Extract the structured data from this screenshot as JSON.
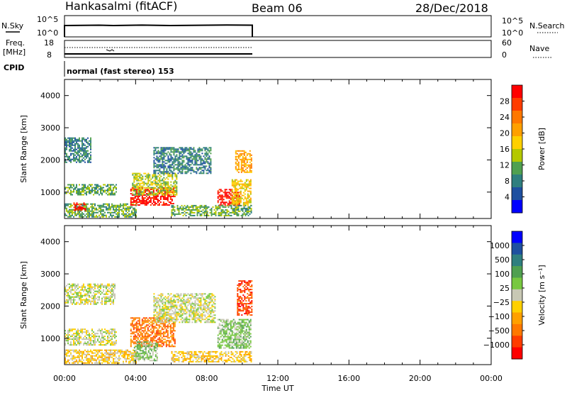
{
  "header": {
    "station": "Hankasalmi (fitACF)",
    "beam": "Beam 06",
    "date": "28/Dec/2018"
  },
  "nsky_panel": {
    "label": "N.Sky",
    "left_ticks": [
      "10^5",
      "10^0"
    ],
    "right_ticks": [
      "10^5",
      "10^0"
    ],
    "right_label": "N.Search"
  },
  "freq_panel": {
    "label_line1": "Freq.",
    "label_line2": "[MHz]",
    "left_ticks": [
      "18",
      "8"
    ],
    "right_ticks": [
      "60",
      "0"
    ],
    "right_label": "Nave"
  },
  "cpid_panel": {
    "label": "CPID",
    "text": "normal (fast stereo) 153"
  },
  "chart_data": [
    {
      "type": "heatmap",
      "name": "power",
      "ylabel": "Slant Range [km]",
      "y_ticks": [
        1000,
        2000,
        3000,
        4000
      ],
      "ylim": [
        180,
        4500
      ],
      "xlim": [
        0,
        24
      ],
      "colorbar": {
        "label": "Power [dB]",
        "ticks": [
          "28",
          "24",
          "20",
          "16",
          "12",
          "8",
          "4"
        ],
        "colors": [
          "#ff0000",
          "#ff3c00",
          "#ff7800",
          "#ffa000",
          "#ffd000",
          "#b4c800",
          "#50a050",
          "#2f7f7f",
          "#1e50a0",
          "#0000ff"
        ]
      },
      "regions": [
        {
          "t0": 0.0,
          "t1": 1.5,
          "r0": 1950,
          "r1": 2700,
          "level": 7
        },
        {
          "t0": 0.0,
          "t1": 2.9,
          "r0": 900,
          "r1": 1250,
          "level": 6
        },
        {
          "t0": 0.0,
          "t1": 4.0,
          "r0": 250,
          "r1": 650,
          "level": 6
        },
        {
          "t0": 0.5,
          "t1": 1.2,
          "r0": 450,
          "r1": 680,
          "level": 0
        },
        {
          "t0": 3.7,
          "t1": 6.2,
          "r0": 600,
          "r1": 1150,
          "level": 0
        },
        {
          "t0": 3.8,
          "t1": 6.3,
          "r0": 900,
          "r1": 1600,
          "level": 5
        },
        {
          "t0": 5.0,
          "t1": 8.2,
          "r0": 1600,
          "r1": 2400,
          "level": 7
        },
        {
          "t0": 8.6,
          "t1": 9.8,
          "r0": 600,
          "r1": 1100,
          "level": 0
        },
        {
          "t0": 9.4,
          "t1": 10.5,
          "r0": 600,
          "r1": 1400,
          "level": 4
        },
        {
          "t0": 9.6,
          "t1": 10.5,
          "r0": 1600,
          "r1": 2300,
          "level": 3
        },
        {
          "t0": 6.0,
          "t1": 10.5,
          "r0": 250,
          "r1": 600,
          "level": 6
        }
      ]
    },
    {
      "type": "heatmap",
      "name": "velocity",
      "ylabel": "Slant Range [km]",
      "y_ticks": [
        1000,
        2000,
        3000,
        4000
      ],
      "ylim": [
        180,
        4500
      ],
      "xlim": [
        0,
        24
      ],
      "x_ticks": [
        "00:00",
        "04:00",
        "08:00",
        "12:00",
        "16:00",
        "20:00",
        "00:00"
      ],
      "xlabel": "Time UT",
      "colorbar": {
        "label": "Velocity [m s⁻¹]",
        "ticks": [
          "1000",
          "500",
          "100",
          "25",
          "−25",
          "−100",
          "−500",
          "−1000"
        ],
        "colors": [
          "#0000ff",
          "#1e50a0",
          "#2f7f7f",
          "#50a050",
          "#78c840",
          "#c8c8b4",
          "#ffd000",
          "#ffa000",
          "#ff7800",
          "#ff3c00",
          "#ff0000"
        ]
      },
      "regions": [
        {
          "t0": 0.0,
          "t1": 2.8,
          "r0": 2050,
          "r1": 2700,
          "level": 5
        },
        {
          "t0": 0.0,
          "t1": 2.9,
          "r0": 800,
          "r1": 1300,
          "level": 5
        },
        {
          "t0": 0.0,
          "t1": 4.0,
          "r0": 250,
          "r1": 650,
          "level": 6
        },
        {
          "t0": 3.7,
          "t1": 6.2,
          "r0": 750,
          "r1": 1650,
          "level": 8
        },
        {
          "t0": 3.9,
          "t1": 5.2,
          "r0": 300,
          "r1": 900,
          "level": 4
        },
        {
          "t0": 5.0,
          "t1": 8.5,
          "r0": 1500,
          "r1": 2400,
          "level": 5
        },
        {
          "t0": 8.6,
          "t1": 10.5,
          "r0": 700,
          "r1": 1600,
          "level": 4
        },
        {
          "t0": 9.7,
          "t1": 10.5,
          "r0": 1700,
          "r1": 2800,
          "level": 9
        },
        {
          "t0": 6.0,
          "t1": 10.5,
          "r0": 250,
          "r1": 600,
          "level": 6
        }
      ]
    }
  ]
}
